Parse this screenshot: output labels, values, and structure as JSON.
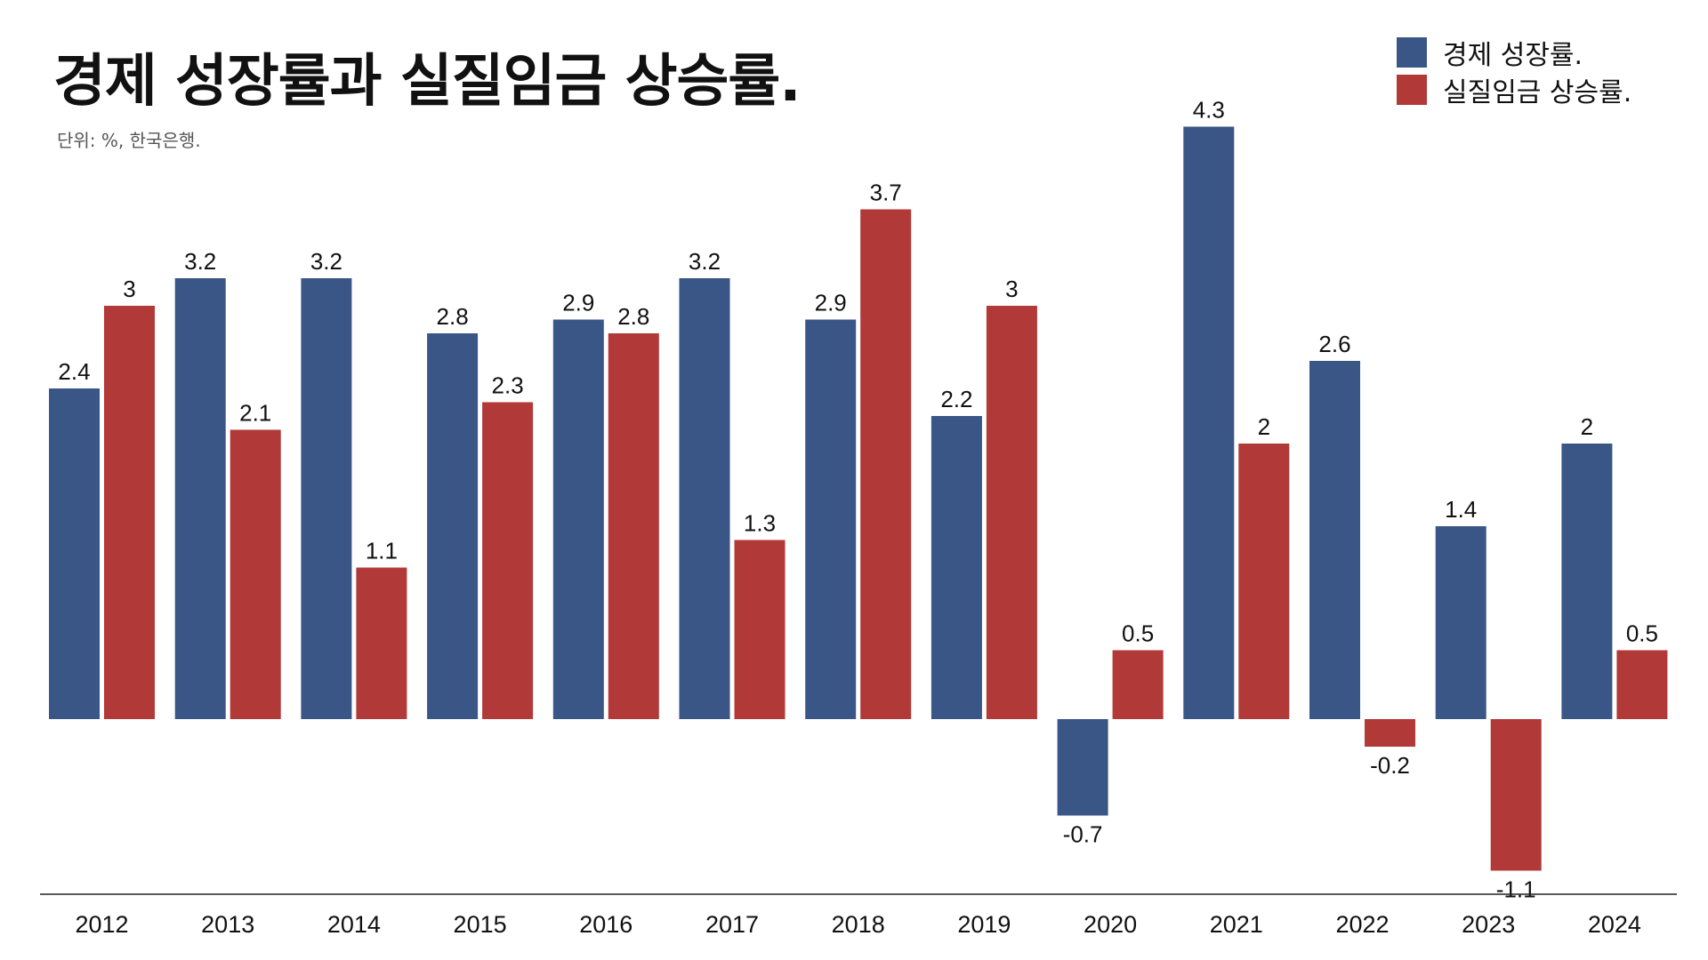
{
  "chart_data": {
    "type": "bar",
    "title": "경제 성장률과 실질임금 상승률.",
    "subtitle": "단위: %, 한국은행.",
    "categories": [
      "2012",
      "2013",
      "2014",
      "2015",
      "2016",
      "2017",
      "2018",
      "2019",
      "2020",
      "2021",
      "2022",
      "2023",
      "2024"
    ],
    "series": [
      {
        "name": "경제 성장률.",
        "color": "#3a5687",
        "values": [
          2.4,
          3.2,
          3.2,
          2.8,
          2.9,
          3.2,
          2.9,
          2.2,
          -0.7,
          4.3,
          2.6,
          1.4,
          2.0
        ]
      },
      {
        "name": "실질임금 상승률.",
        "color": "#b13937",
        "values": [
          3.0,
          2.1,
          1.1,
          2.3,
          2.8,
          1.3,
          3.7,
          3.0,
          0.5,
          2.0,
          -0.2,
          -1.1,
          0.5
        ]
      }
    ],
    "value_labels": [
      [
        "2.4",
        "3.2",
        "3.2",
        "2.8",
        "2.9",
        "3.2",
        "2.9",
        "2.2",
        "-0.7",
        "4.3",
        "2.6",
        "1.4",
        "2"
      ],
      [
        "3",
        "2.1",
        "1.1",
        "2.3",
        "2.8",
        "1.3",
        "3.7",
        "3",
        "0.5",
        "2",
        "-0.2",
        "-1.1",
        "0.5"
      ]
    ],
    "ylim": [
      -1.25,
      4.5
    ],
    "legend_position": "top-right",
    "grid": false
  }
}
